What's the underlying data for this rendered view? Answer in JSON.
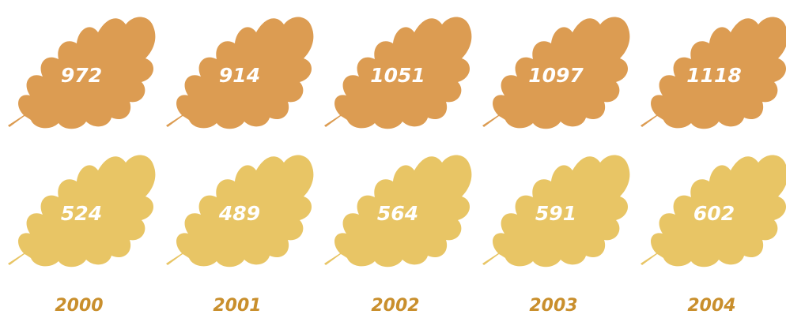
{
  "chart_data": {
    "type": "pictograph",
    "categories": [
      "2000",
      "2001",
      "2002",
      "2003",
      "2004"
    ],
    "series": [
      {
        "color": "#dc9c52",
        "values": [
          972,
          914,
          1051,
          1097,
          1118
        ]
      },
      {
        "color": "#e8c565",
        "values": [
          524,
          489,
          564,
          591,
          602
        ]
      }
    ]
  }
}
